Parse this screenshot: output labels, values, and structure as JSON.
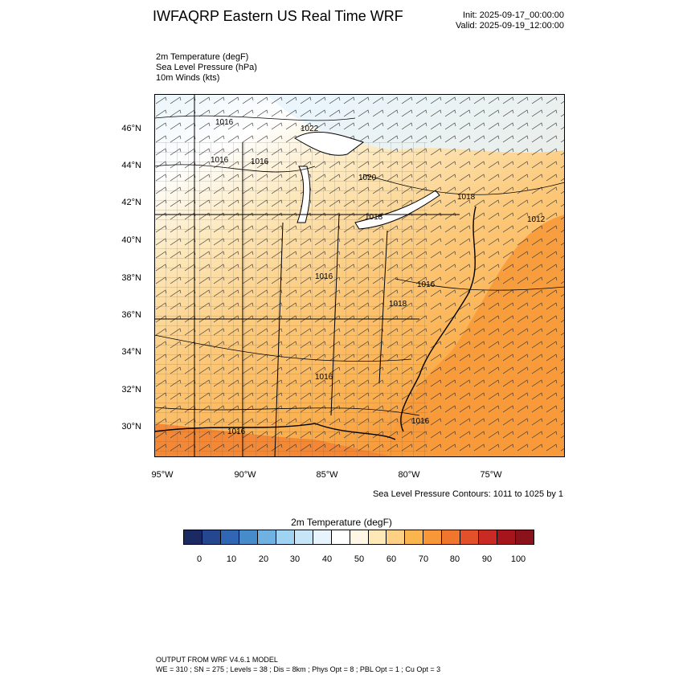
{
  "header": {
    "title": "IWFAQRP Eastern US Real Time WRF",
    "init": "Init: 2025-09-17_00:00:00",
    "valid": "Valid: 2025-09-19_12:00:00"
  },
  "fields": [
    "2m Temperature   (degF)",
    "Sea Level Pressure   (hPa)",
    "10m Winds   (kts)"
  ],
  "map": {
    "lat_labels": [
      "46°N",
      "44°N",
      "42°N",
      "40°N",
      "38°N",
      "36°N",
      "34°N",
      "32°N",
      "30°N"
    ],
    "lon_labels": [
      "95°W",
      "90°W",
      "85°W",
      "80°W",
      "75°W"
    ],
    "isobar_labels": [
      "1016",
      "1022",
      "1016",
      "1016",
      "1020",
      "1018",
      "1018",
      "1012",
      "1016",
      "1016",
      "1018",
      "1016",
      "1016",
      "1016"
    ],
    "contour_note": "Sea Level Pressure Contours: 1011 to 1025 by 1"
  },
  "colorbar": {
    "title": "2m Temperature  (degF)",
    "tick_labels": [
      "0",
      "10",
      "20",
      "30",
      "40",
      "50",
      "60",
      "70",
      "80",
      "90",
      "100"
    ],
    "colors": [
      "#1b2a63",
      "#24478f",
      "#2f67b4",
      "#468ccb",
      "#6fb2e2",
      "#a0d3f2",
      "#c6e6f8",
      "#e7f4fb",
      "#ffffff",
      "#fff8e6",
      "#fde8b6",
      "#fdd084",
      "#fbb54e",
      "#f79737",
      "#f0762e",
      "#e2512a",
      "#c92a23",
      "#a5151b",
      "#8a121a"
    ]
  },
  "footer": {
    "line1": "OUTPUT FROM WRF V4.6.1 MODEL",
    "line2": "WE = 310 ; SN = 275 ; Levels = 38 ; Dis = 8km ; Phys Opt = 8 ; PBL Opt = 1 ; Cu Opt = 3"
  }
}
